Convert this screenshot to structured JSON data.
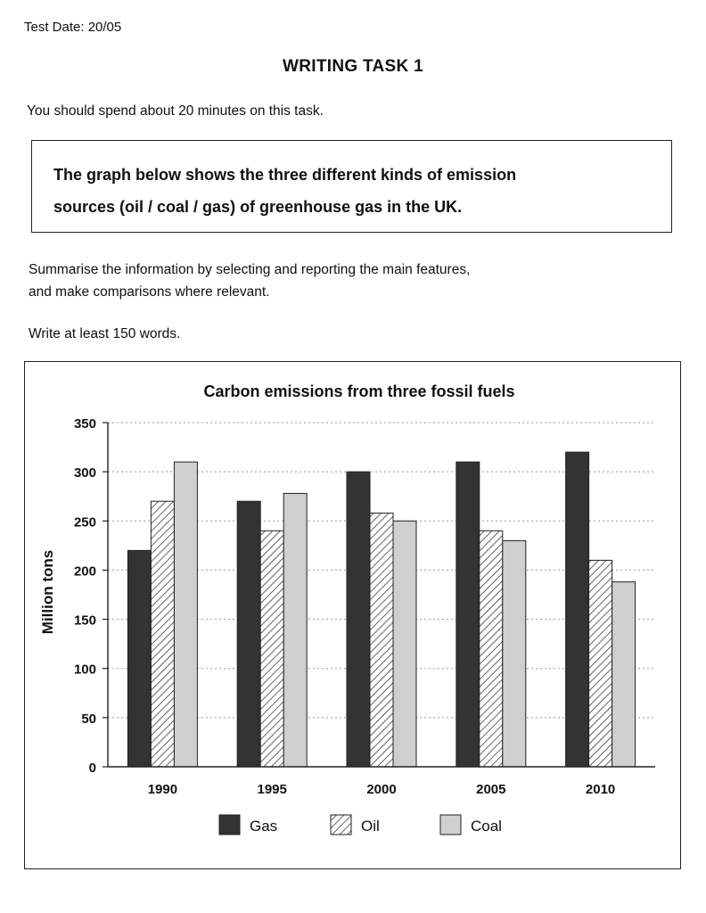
{
  "header": {
    "test_date": "Test Date: 20/05",
    "task_title": "WRITING TASK 1",
    "instruction": "You should spend about 20 minutes on this task."
  },
  "prompt": {
    "line1": "The graph below shows the three different kinds of emission",
    "line2": "sources (oil / coal / gas) of greenhouse gas in the UK."
  },
  "summary": {
    "line1": "Summarise the information by selecting and reporting the main features,",
    "line2": "and make comparisons where relevant."
  },
  "min_words": "Write at least 150 words.",
  "colors": {
    "gas": "#333333",
    "oil_hatch": "#222222",
    "coal": "#cfcfcf",
    "grid": "#9a9a9a"
  },
  "chart_data": {
    "type": "bar",
    "title": "Carbon emissions from three fossil fuels",
    "xlabel": "",
    "ylabel": "Million tons",
    "ylim": [
      0,
      350
    ],
    "yticks": [
      0,
      50,
      100,
      150,
      200,
      250,
      300,
      350
    ],
    "grid": "horizontal dotted",
    "legend_position": "bottom",
    "categories": [
      "1990",
      "1995",
      "2000",
      "2005",
      "2010"
    ],
    "series": [
      {
        "name": "Gas",
        "key": "gas",
        "values": [
          220,
          270,
          300,
          310,
          320
        ]
      },
      {
        "name": "Oil",
        "key": "oil",
        "values": [
          270,
          240,
          258,
          240,
          210
        ]
      },
      {
        "name": "Coal",
        "key": "coal",
        "values": [
          310,
          278,
          250,
          230,
          188
        ]
      }
    ]
  }
}
